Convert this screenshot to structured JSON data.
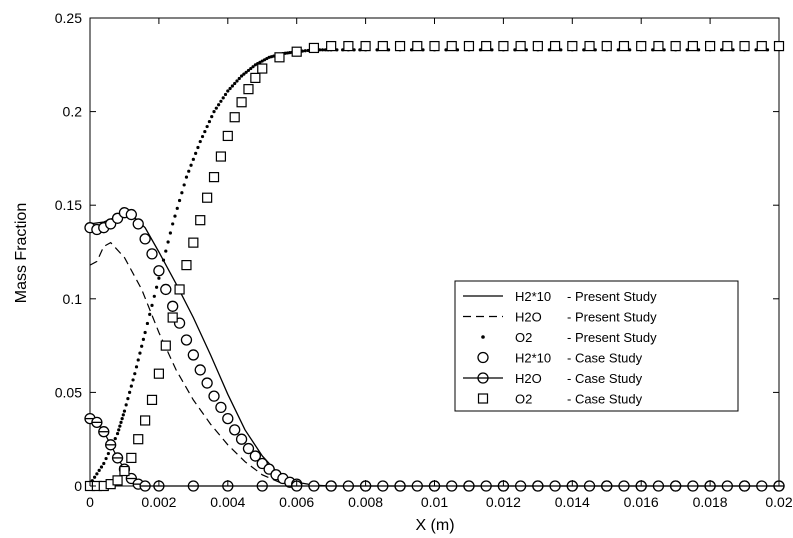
{
  "chart_data": {
    "type": "line",
    "title": "",
    "xlabel": "X (m)",
    "ylabel": "Mass Fraction",
    "xlim": [
      0,
      0.02
    ],
    "ylim": [
      0,
      0.25
    ],
    "xticks": [
      0,
      0.002,
      0.004,
      0.006,
      0.008,
      0.01,
      0.012,
      0.014,
      0.016,
      0.018,
      0.02
    ],
    "xtick_labels": [
      "0",
      "0.002",
      "0.004",
      "0.006",
      "0.008",
      "0.01",
      "0.012",
      "0.014",
      "0.016",
      "0.018",
      "0.02"
    ],
    "yticks": [
      0,
      0.05,
      0.1,
      0.15,
      0.2,
      0.25
    ],
    "ytick_labels": [
      "0",
      "0.05",
      "0.1",
      "0.15",
      "0.2",
      "0.25"
    ],
    "grid": false,
    "legend_position": "center-right",
    "series": [
      {
        "name": "H2*10 - Present Study",
        "style": "solid",
        "x": [
          0,
          0.0004,
          0.0008,
          0.0012,
          0.0016,
          0.002,
          0.0025,
          0.003,
          0.0035,
          0.004,
          0.0045,
          0.005,
          0.0055,
          0.006,
          0.0065,
          0.007,
          0.008,
          0.01,
          0.012,
          0.014,
          0.016,
          0.018,
          0.02
        ],
        "y": [
          0.14,
          0.141,
          0.144,
          0.145,
          0.138,
          0.125,
          0.108,
          0.09,
          0.07,
          0.049,
          0.03,
          0.016,
          0.006,
          0.002,
          0.0005,
          0,
          0,
          0,
          0,
          0,
          0,
          0,
          0
        ]
      },
      {
        "name": "H2O - Present Study",
        "style": "dashed",
        "x": [
          0,
          0.0002,
          0.0004,
          0.0006,
          0.001,
          0.0015,
          0.002,
          0.0025,
          0.003,
          0.0035,
          0.004,
          0.0045,
          0.005,
          0.0055,
          0.006
        ],
        "y": [
          0.118,
          0.12,
          0.128,
          0.13,
          0.122,
          0.105,
          0.082,
          0.062,
          0.046,
          0.033,
          0.022,
          0.013,
          0.006,
          0.002,
          0.0005
        ]
      },
      {
        "name": "O2 - Present Study",
        "style": "dotted",
        "x": [
          0,
          0.0004,
          0.0008,
          0.001,
          0.0013,
          0.0016,
          0.002,
          0.0024,
          0.0028,
          0.0032,
          0.0036,
          0.004,
          0.0044,
          0.0048,
          0.0052,
          0.0056,
          0.006,
          0.0065,
          0.007,
          0.008,
          0.01,
          0.012,
          0.014,
          0.016,
          0.018,
          0.02
        ],
        "y": [
          0.001,
          0.012,
          0.028,
          0.04,
          0.06,
          0.082,
          0.111,
          0.14,
          0.165,
          0.184,
          0.2,
          0.211,
          0.219,
          0.225,
          0.229,
          0.231,
          0.232,
          0.233,
          0.233,
          0.233,
          0.233,
          0.233,
          0.233,
          0.233,
          0.233,
          0.233
        ]
      },
      {
        "name": "H2*10 - Case Study",
        "style": "circle",
        "x": [
          0,
          0.0002,
          0.0004,
          0.0006,
          0.0008,
          0.001,
          0.0012,
          0.0014,
          0.0016,
          0.0018,
          0.002,
          0.0022,
          0.0024,
          0.0026,
          0.0028,
          0.003,
          0.0032,
          0.0034,
          0.0036,
          0.0038,
          0.004,
          0.0042,
          0.0044,
          0.0046,
          0.0048,
          0.005,
          0.0052,
          0.0054,
          0.0056,
          0.0058,
          0.006,
          0.0065,
          0.007,
          0.0075,
          0.008,
          0.0085,
          0.009,
          0.0095,
          0.01,
          0.0105,
          0.011,
          0.0115,
          0.012,
          0.0125,
          0.013,
          0.0135,
          0.014,
          0.0145,
          0.015,
          0.0155,
          0.016,
          0.0165,
          0.017,
          0.0175,
          0.018,
          0.0185,
          0.019,
          0.0195,
          0.02
        ],
        "y": [
          0.138,
          0.137,
          0.138,
          0.14,
          0.143,
          0.146,
          0.145,
          0.14,
          0.132,
          0.124,
          0.115,
          0.105,
          0.096,
          0.087,
          0.078,
          0.07,
          0.062,
          0.055,
          0.048,
          0.042,
          0.036,
          0.03,
          0.025,
          0.02,
          0.016,
          0.012,
          0.009,
          0.006,
          0.004,
          0.002,
          0.001,
          0,
          0,
          0,
          0,
          0,
          0,
          0,
          0,
          0,
          0,
          0,
          0,
          0,
          0,
          0,
          0,
          0,
          0,
          0,
          0,
          0,
          0,
          0,
          0,
          0,
          0,
          0,
          0
        ]
      },
      {
        "name": "H2O - Case Study",
        "style": "dash-circle",
        "x": [
          0,
          0.0002,
          0.0004,
          0.0006,
          0.0008,
          0.001,
          0.0012,
          0.0014,
          0.0016,
          0.002,
          0.003,
          0.004,
          0.005,
          0.006,
          0.007,
          0.008,
          0.009,
          0.01,
          0.011,
          0.012,
          0.013,
          0.014,
          0.015,
          0.016,
          0.017,
          0.018,
          0.019,
          0.02
        ],
        "y": [
          0.036,
          0.034,
          0.029,
          0.022,
          0.015,
          0.009,
          0.004,
          0.001,
          0,
          0,
          0,
          0,
          0,
          0,
          0,
          0,
          0,
          0,
          0,
          0,
          0,
          0,
          0,
          0,
          0,
          0,
          0,
          0
        ]
      },
      {
        "name": "O2 - Case Study",
        "style": "square",
        "x": [
          0,
          0.0002,
          0.0004,
          0.0006,
          0.0008,
          0.001,
          0.0012,
          0.0014,
          0.0016,
          0.0018,
          0.002,
          0.0022,
          0.0024,
          0.0026,
          0.0028,
          0.003,
          0.0032,
          0.0034,
          0.0036,
          0.0038,
          0.004,
          0.0042,
          0.0044,
          0.0046,
          0.0048,
          0.005,
          0.0055,
          0.006,
          0.0065,
          0.007,
          0.0075,
          0.008,
          0.0085,
          0.009,
          0.0095,
          0.01,
          0.0105,
          0.011,
          0.0115,
          0.012,
          0.0125,
          0.013,
          0.0135,
          0.014,
          0.0145,
          0.015,
          0.0155,
          0.016,
          0.0165,
          0.017,
          0.0175,
          0.018,
          0.0185,
          0.019,
          0.0195,
          0.02
        ],
        "y": [
          0,
          0,
          0,
          0.001,
          0.003,
          0.008,
          0.015,
          0.025,
          0.035,
          0.046,
          0.06,
          0.075,
          0.09,
          0.105,
          0.118,
          0.13,
          0.142,
          0.154,
          0.165,
          0.176,
          0.187,
          0.197,
          0.205,
          0.212,
          0.218,
          0.223,
          0.229,
          0.232,
          0.234,
          0.235,
          0.235,
          0.235,
          0.235,
          0.235,
          0.235,
          0.235,
          0.235,
          0.235,
          0.235,
          0.235,
          0.235,
          0.235,
          0.235,
          0.235,
          0.235,
          0.235,
          0.235,
          0.235,
          0.235,
          0.235,
          0.235,
          0.235,
          0.235,
          0.235,
          0.235,
          0.235
        ]
      }
    ],
    "legend": [
      {
        "name": "H2*10",
        "study": "- Present Study",
        "style": "solid"
      },
      {
        "name": "H2O",
        "study": "- Present Study",
        "style": "dashed"
      },
      {
        "name": "O2",
        "study": "- Present Study",
        "style": "dotted"
      },
      {
        "name": "H2*10",
        "study": "- Case Study",
        "style": "circle"
      },
      {
        "name": "H2O",
        "study": "- Case Study",
        "style": "dash-circle"
      },
      {
        "name": "O2",
        "study": "- Case Study",
        "style": "square"
      }
    ],
    "colors": {
      "line": "#000000",
      "background": "#ffffff"
    }
  }
}
